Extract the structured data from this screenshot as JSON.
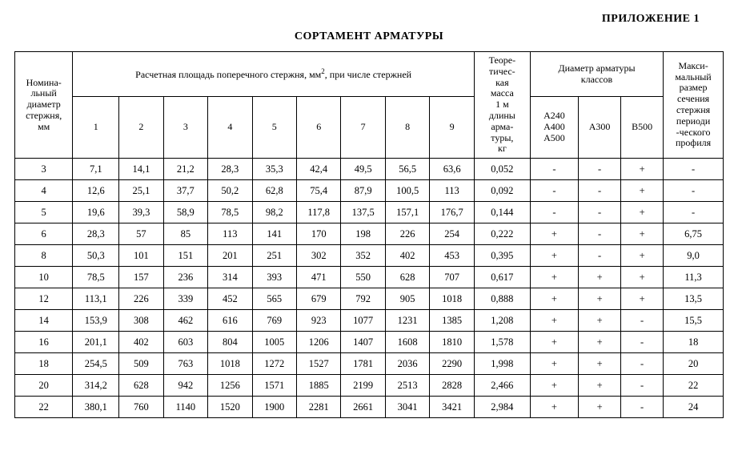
{
  "appendix": "ПРИЛОЖЕНИЕ 1",
  "title": "СОРТАМЕНТ АРМАТУРЫ",
  "headers": {
    "nominal": "Номина-\nльный\nдиаметр\nстержня,\nмм",
    "area_group_pre": "Расчетная площадь поперечного стержня, мм",
    "area_group_post": ", при числе стержней",
    "mass": "Теоре-\nтичес-\nкая\nмасса\n1 м\nдлины\nарма-\nтуры,\nкг",
    "class_group": "Диаметр арматуры\nклассов",
    "class_a": "А240\nА400\nА500",
    "class_b": "А300",
    "class_c": "В500",
    "maxsize": "Макси-\nмальный\nразмер\nсечения\nстержня\nпериоди\n-ческого\nпрофиля",
    "nums": [
      "1",
      "2",
      "3",
      "4",
      "5",
      "6",
      "7",
      "8",
      "9"
    ]
  },
  "rows": [
    {
      "d": "3",
      "a": [
        "7,1",
        "14,1",
        "21,2",
        "28,3",
        "35,3",
        "42,4",
        "49,5",
        "56,5",
        "63,6"
      ],
      "m": "0,052",
      "c": [
        "-",
        "-",
        "+"
      ],
      "x": "-"
    },
    {
      "d": "4",
      "a": [
        "12,6",
        "25,1",
        "37,7",
        "50,2",
        "62,8",
        "75,4",
        "87,9",
        "100,5",
        "113"
      ],
      "m": "0,092",
      "c": [
        "-",
        "-",
        "+"
      ],
      "x": "-"
    },
    {
      "d": "5",
      "a": [
        "19,6",
        "39,3",
        "58,9",
        "78,5",
        "98,2",
        "117,8",
        "137,5",
        "157,1",
        "176,7"
      ],
      "m": "0,144",
      "c": [
        "-",
        "-",
        "+"
      ],
      "x": "-"
    },
    {
      "d": "6",
      "a": [
        "28,3",
        "57",
        "85",
        "113",
        "141",
        "170",
        "198",
        "226",
        "254"
      ],
      "m": "0,222",
      "c": [
        "+",
        "-",
        "+"
      ],
      "x": "6,75"
    },
    {
      "d": "8",
      "a": [
        "50,3",
        "101",
        "151",
        "201",
        "251",
        "302",
        "352",
        "402",
        "453"
      ],
      "m": "0,395",
      "c": [
        "+",
        "-",
        "+"
      ],
      "x": "9,0"
    },
    {
      "d": "10",
      "a": [
        "78,5",
        "157",
        "236",
        "314",
        "393",
        "471",
        "550",
        "628",
        "707"
      ],
      "m": "0,617",
      "c": [
        "+",
        "+",
        "+"
      ],
      "x": "11,3"
    },
    {
      "d": "12",
      "a": [
        "113,1",
        "226",
        "339",
        "452",
        "565",
        "679",
        "792",
        "905",
        "1018"
      ],
      "m": "0,888",
      "c": [
        "+",
        "+",
        "+"
      ],
      "x": "13,5"
    },
    {
      "d": "14",
      "a": [
        "153,9",
        "308",
        "462",
        "616",
        "769",
        "923",
        "1077",
        "1231",
        "1385"
      ],
      "m": "1,208",
      "c": [
        "+",
        "+",
        "-"
      ],
      "x": "15,5"
    },
    {
      "d": "16",
      "a": [
        "201,1",
        "402",
        "603",
        "804",
        "1005",
        "1206",
        "1407",
        "1608",
        "1810"
      ],
      "m": "1,578",
      "c": [
        "+",
        "+",
        "-"
      ],
      "x": "18"
    },
    {
      "d": "18",
      "a": [
        "254,5",
        "509",
        "763",
        "1018",
        "1272",
        "1527",
        "1781",
        "2036",
        "2290"
      ],
      "m": "1,998",
      "c": [
        "+",
        "+",
        "-"
      ],
      "x": "20"
    },
    {
      "d": "20",
      "a": [
        "314,2",
        "628",
        "942",
        "1256",
        "1571",
        "1885",
        "2199",
        "2513",
        "2828"
      ],
      "m": "2,466",
      "c": [
        "+",
        "+",
        "-"
      ],
      "x": "22"
    },
    {
      "d": "22",
      "a": [
        "380,1",
        "760",
        "1140",
        "1520",
        "1900",
        "2281",
        "2661",
        "3041",
        "3421"
      ],
      "m": "2,984",
      "c": [
        "+",
        "+",
        "-"
      ],
      "x": "24"
    }
  ]
}
